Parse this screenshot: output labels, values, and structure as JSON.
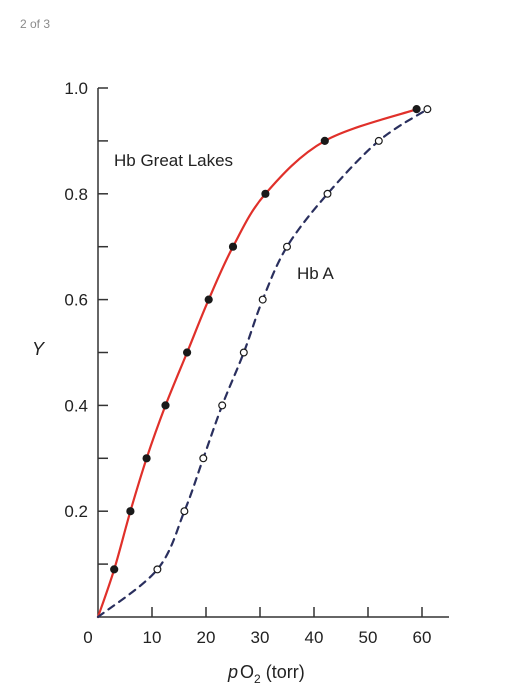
{
  "page_indicator": "2 of 3",
  "chart_data": {
    "type": "line",
    "ylabel": "Y",
    "xlabel": {
      "italic_p": "p",
      "main": "O",
      "sub": "2",
      "unit": " (torr)"
    },
    "x_ticks": [
      0,
      10,
      20,
      30,
      40,
      50,
      60
    ],
    "y_ticks": [
      {
        "value": 0.2,
        "label": "0.2"
      },
      {
        "value": 0.4,
        "label": "0.4"
      },
      {
        "value": 0.6,
        "label": "0.6"
      },
      {
        "value": 0.8,
        "label": "0.8"
      },
      {
        "value": 1.0,
        "label": "1.0"
      }
    ],
    "xlim": [
      0,
      65
    ],
    "ylim": [
      0,
      1.0
    ],
    "series": [
      {
        "name": "Hb Great Lakes",
        "line_color": "#e0302a",
        "line_style": "solid",
        "marker": "filled",
        "points": [
          {
            "x": 0,
            "y": 0
          },
          {
            "x": 3,
            "y": 0.09
          },
          {
            "x": 6,
            "y": 0.2
          },
          {
            "x": 9,
            "y": 0.3
          },
          {
            "x": 12.5,
            "y": 0.4
          },
          {
            "x": 16.5,
            "y": 0.5
          },
          {
            "x": 20.5,
            "y": 0.6
          },
          {
            "x": 25,
            "y": 0.7
          },
          {
            "x": 31,
            "y": 0.8
          },
          {
            "x": 42,
            "y": 0.9
          },
          {
            "x": 59,
            "y": 0.96
          }
        ]
      },
      {
        "name": "Hb A",
        "line_color": "#2a2f5e",
        "line_style": "dashed",
        "marker": "open",
        "points": [
          {
            "x": 0,
            "y": 0
          },
          {
            "x": 11,
            "y": 0.09
          },
          {
            "x": 16,
            "y": 0.2
          },
          {
            "x": 19.5,
            "y": 0.3
          },
          {
            "x": 23,
            "y": 0.4
          },
          {
            "x": 27,
            "y": 0.5
          },
          {
            "x": 30.5,
            "y": 0.6
          },
          {
            "x": 35,
            "y": 0.7
          },
          {
            "x": 42.5,
            "y": 0.8
          },
          {
            "x": 52,
            "y": 0.9
          },
          {
            "x": 61,
            "y": 0.96
          }
        ]
      }
    ]
  }
}
